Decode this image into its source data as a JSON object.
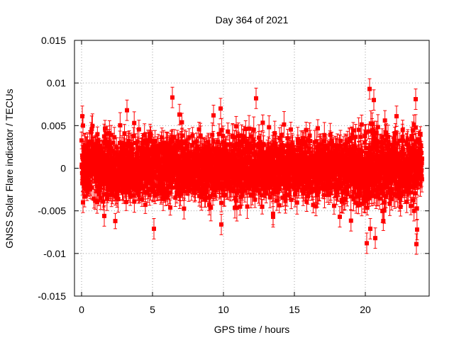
{
  "chart_data": {
    "type": "scatter",
    "title": "Day 364 of 2021",
    "xlabel": "GPS time / hours",
    "ylabel": "GNSS Solar Flare indicator / TECUs",
    "xlim": [
      -0.5,
      24.5
    ],
    "ylim": [
      -0.015,
      0.015
    ],
    "x_ticks": [
      0,
      5,
      10,
      15,
      20
    ],
    "y_ticks": [
      -0.015,
      -0.01,
      -0.005,
      0,
      0.005,
      0.01,
      0.015
    ],
    "x_tick_labels": [
      "0",
      "5",
      "10",
      "15",
      "20"
    ],
    "y_tick_labels": [
      "-0.015",
      "-0.01",
      "-0.005",
      "0",
      "0.005",
      "0.01",
      "0.015"
    ],
    "grid": true,
    "legend": "none",
    "marker": "square",
    "error_bars": true,
    "series_color": "#ff0000",
    "x_start": 0,
    "x_end": 24,
    "sample_count": 2880,
    "typical_spread": 0.0025,
    "typical_error": 0.0012,
    "notable_points": [
      {
        "x": 0.05,
        "y": 0.0061
      },
      {
        "x": 0.1,
        "y": 0.005
      },
      {
        "x": 0.1,
        "y": -0.004
      },
      {
        "x": 1.6,
        "y": -0.0056
      },
      {
        "x": 3.2,
        "y": 0.0068
      },
      {
        "x": 5.1,
        "y": -0.0071
      },
      {
        "x": 6.4,
        "y": 0.0083
      },
      {
        "x": 6.9,
        "y": 0.0063
      },
      {
        "x": 9.3,
        "y": 0.0062
      },
      {
        "x": 9.8,
        "y": 0.007
      },
      {
        "x": 9.85,
        "y": -0.0066
      },
      {
        "x": 12.3,
        "y": 0.0082
      },
      {
        "x": 13.5,
        "y": -0.0057
      },
      {
        "x": 18.2,
        "y": -0.0057
      },
      {
        "x": 20.1,
        "y": -0.0088
      },
      {
        "x": 20.3,
        "y": 0.0093
      },
      {
        "x": 20.35,
        "y": -0.0071
      },
      {
        "x": 20.6,
        "y": 0.008
      },
      {
        "x": 20.7,
        "y": -0.0082
      },
      {
        "x": 22.2,
        "y": 0.0061
      },
      {
        "x": 23.55,
        "y": 0.0081
      },
      {
        "x": 23.65,
        "y": -0.0072
      },
      {
        "x": 23.6,
        "y": -0.0089
      }
    ]
  }
}
